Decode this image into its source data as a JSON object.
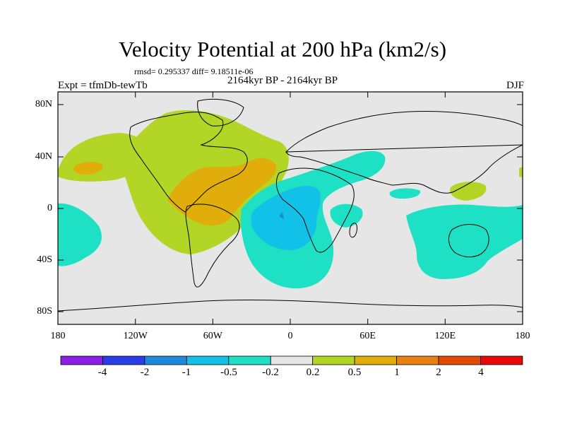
{
  "title": "Velocity Potential at 200 hPa (km2/s)",
  "stats": "rmsd= 0.295337 diff= 9.18511e-06",
  "period": "2164kyr BP - 2164kyr BP",
  "expt": "Expt = tfmDb-tewTb",
  "season": "DJF",
  "y_ticks": [
    "80N",
    "40N",
    "0",
    "40S",
    "80S"
  ],
  "x_ticks": [
    "180",
    "120W",
    "60W",
    "0",
    "60E",
    "120E",
    "180"
  ],
  "colorbar": {
    "labels": [
      "-4",
      "-2",
      "-1",
      "-0.5",
      "-0.2",
      "0.2",
      "0.5",
      "1",
      "2",
      "4"
    ],
    "colors": [
      "#8a1fe6",
      "#2a3ce6",
      "#1e88dd",
      "#12c1e8",
      "#1de0c4",
      "#e6e6e6",
      "#b3d526",
      "#e0ad0a",
      "#e88014",
      "#e34a06",
      "#e60a0a"
    ]
  },
  "colors": {
    "land_outline": "#000000",
    "neutral": "#e6e6e6"
  }
}
